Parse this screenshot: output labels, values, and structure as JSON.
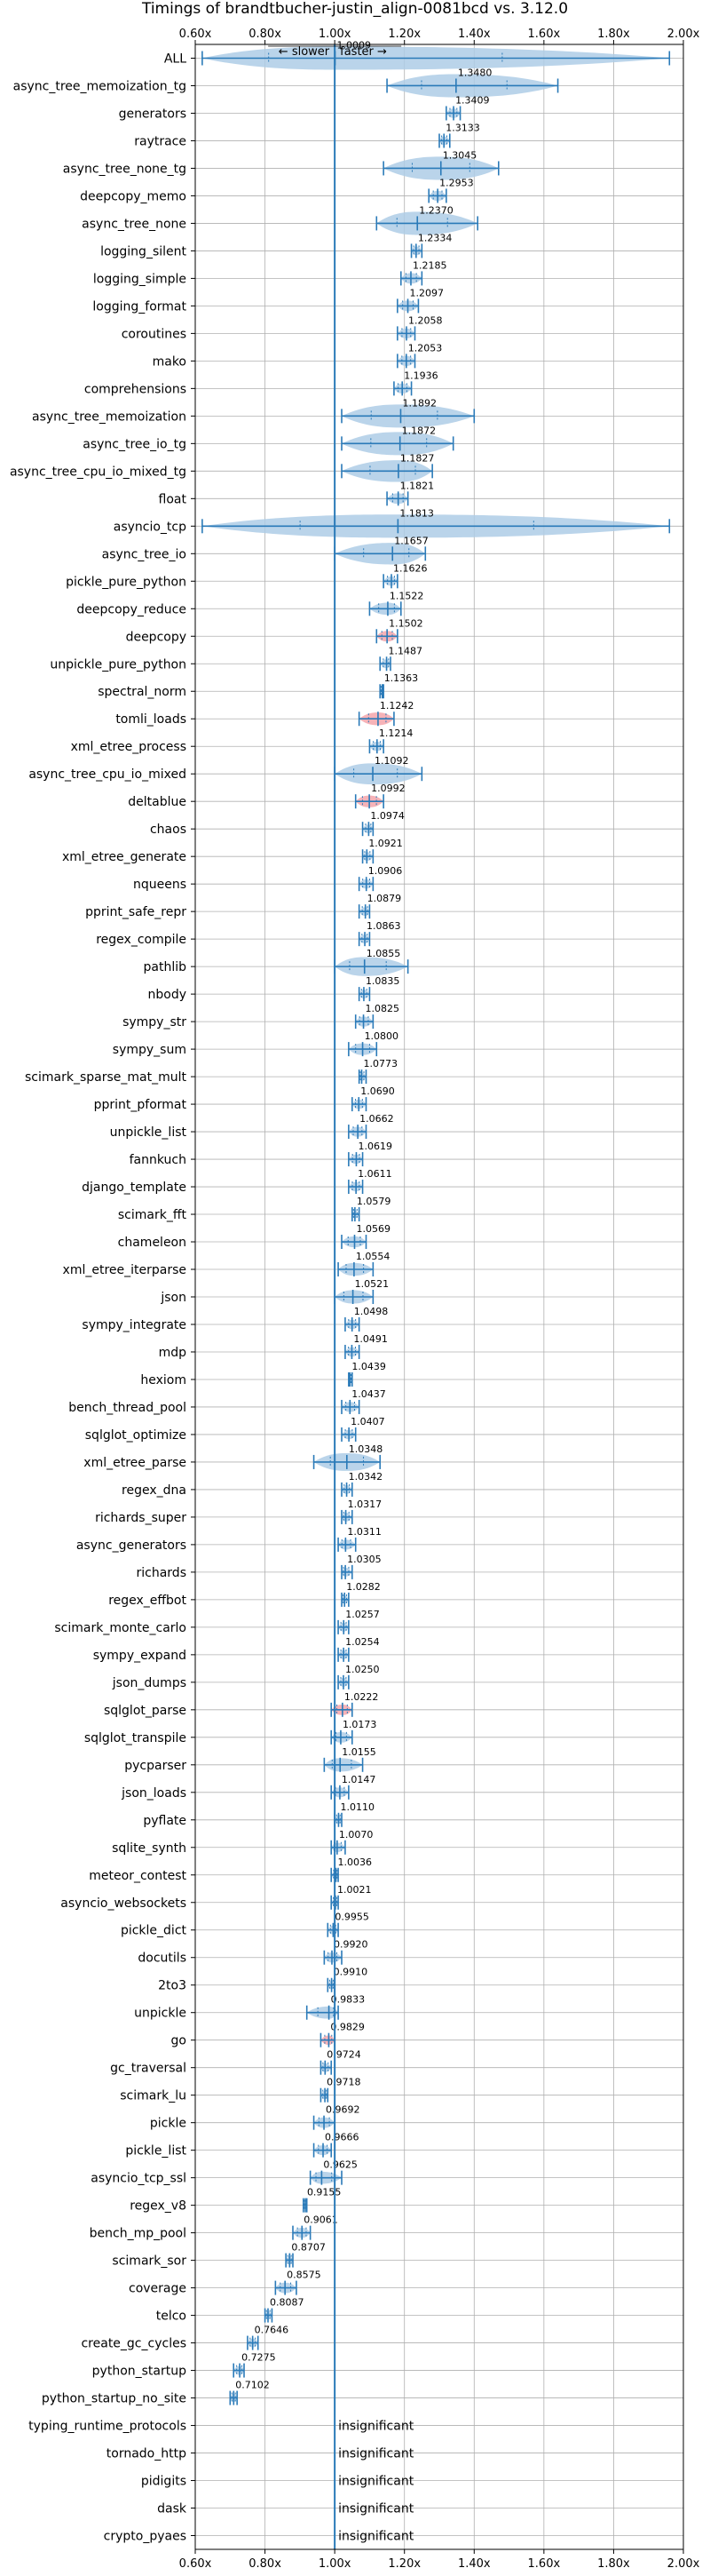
{
  "chart_data": {
    "type": "violin",
    "title": "Timings of brandtbucher-justin_align-0081bcd vs. 3.12.0",
    "xlim": [
      0.6,
      2.0
    ],
    "xticks": [
      "0.60x",
      "0.80x",
      "1.00x",
      "1.20x",
      "1.40x",
      "1.60x",
      "1.80x",
      "2.00x"
    ],
    "xtick_values": [
      0.6,
      0.8,
      1.0,
      1.2,
      1.4,
      1.6,
      1.8,
      2.0
    ],
    "reference_line": 1.0,
    "direction_labels": {
      "slower": "← slower",
      "faster": "faster →"
    },
    "grid": true,
    "colors": {
      "violin": "#aecde6",
      "line": "#2a7ab8",
      "outlier": "#f4a6ab"
    },
    "insignificant_text": "insignificant",
    "benchmarks": [
      {
        "name": "ALL",
        "mean": 1.0009,
        "label": "1.0009",
        "min": 0.62,
        "max": 1.96
      },
      {
        "name": "async_tree_memoization_tg",
        "mean": 1.348,
        "label": "1.3480",
        "min": 1.15,
        "max": 1.64
      },
      {
        "name": "generators",
        "mean": 1.3409,
        "label": "1.3409",
        "min": 1.32,
        "max": 1.36
      },
      {
        "name": "raytrace",
        "mean": 1.3133,
        "label": "1.3133",
        "min": 1.3,
        "max": 1.33
      },
      {
        "name": "async_tree_none_tg",
        "mean": 1.3045,
        "label": "1.3045",
        "min": 1.14,
        "max": 1.47
      },
      {
        "name": "deepcopy_memo",
        "mean": 1.2953,
        "label": "1.2953",
        "min": 1.27,
        "max": 1.32
      },
      {
        "name": "async_tree_none",
        "mean": 1.237,
        "label": "1.2370",
        "min": 1.12,
        "max": 1.41
      },
      {
        "name": "logging_silent",
        "mean": 1.2334,
        "label": "1.2334",
        "min": 1.22,
        "max": 1.25
      },
      {
        "name": "logging_simple",
        "mean": 1.2185,
        "label": "1.2185",
        "min": 1.19,
        "max": 1.25
      },
      {
        "name": "logging_format",
        "mean": 1.2097,
        "label": "1.2097",
        "min": 1.18,
        "max": 1.24
      },
      {
        "name": "coroutines",
        "mean": 1.2058,
        "label": "1.2058",
        "min": 1.18,
        "max": 1.23
      },
      {
        "name": "mako",
        "mean": 1.2053,
        "label": "1.2053",
        "min": 1.18,
        "max": 1.23
      },
      {
        "name": "comprehensions",
        "mean": 1.1936,
        "label": "1.1936",
        "min": 1.17,
        "max": 1.22
      },
      {
        "name": "async_tree_memoization",
        "mean": 1.1892,
        "label": "1.1892",
        "min": 1.02,
        "max": 1.4
      },
      {
        "name": "async_tree_io_tg",
        "mean": 1.1872,
        "label": "1.1872",
        "min": 1.02,
        "max": 1.34
      },
      {
        "name": "async_tree_cpu_io_mixed_tg",
        "mean": 1.1827,
        "label": "1.1827",
        "min": 1.02,
        "max": 1.28
      },
      {
        "name": "float",
        "mean": 1.1821,
        "label": "1.1821",
        "min": 1.15,
        "max": 1.21
      },
      {
        "name": "asyncio_tcp",
        "mean": 1.1813,
        "label": "1.1813",
        "min": 0.62,
        "max": 1.96
      },
      {
        "name": "async_tree_io",
        "mean": 1.1657,
        "label": "1.1657",
        "min": 1.0,
        "max": 1.26
      },
      {
        "name": "pickle_pure_python",
        "mean": 1.1626,
        "label": "1.1626",
        "min": 1.14,
        "max": 1.18
      },
      {
        "name": "deepcopy_reduce",
        "mean": 1.1522,
        "label": "1.1522",
        "min": 1.1,
        "max": 1.19
      },
      {
        "name": "deepcopy",
        "mean": 1.1502,
        "label": "1.1502",
        "min": 1.12,
        "max": 1.18,
        "outlier": true
      },
      {
        "name": "unpickle_pure_python",
        "mean": 1.1487,
        "label": "1.1487",
        "min": 1.13,
        "max": 1.16
      },
      {
        "name": "spectral_norm",
        "mean": 1.1363,
        "label": "1.1363",
        "min": 1.13,
        "max": 1.14
      },
      {
        "name": "tomli_loads",
        "mean": 1.1242,
        "label": "1.1242",
        "min": 1.07,
        "max": 1.17,
        "outlier": true
      },
      {
        "name": "xml_etree_process",
        "mean": 1.1214,
        "label": "1.1214",
        "min": 1.1,
        "max": 1.14
      },
      {
        "name": "async_tree_cpu_io_mixed",
        "mean": 1.1092,
        "label": "1.1092",
        "min": 1.0,
        "max": 1.25
      },
      {
        "name": "deltablue",
        "mean": 1.0992,
        "label": "1.0992",
        "min": 1.06,
        "max": 1.14,
        "outlier": true
      },
      {
        "name": "chaos",
        "mean": 1.0974,
        "label": "1.0974",
        "min": 1.08,
        "max": 1.11
      },
      {
        "name": "xml_etree_generate",
        "mean": 1.0921,
        "label": "1.0921",
        "min": 1.08,
        "max": 1.11
      },
      {
        "name": "nqueens",
        "mean": 1.0906,
        "label": "1.0906",
        "min": 1.07,
        "max": 1.11
      },
      {
        "name": "pprint_safe_repr",
        "mean": 1.0879,
        "label": "1.0879",
        "min": 1.07,
        "max": 1.1
      },
      {
        "name": "regex_compile",
        "mean": 1.0863,
        "label": "1.0863",
        "min": 1.07,
        "max": 1.1
      },
      {
        "name": "pathlib",
        "mean": 1.0855,
        "label": "1.0855",
        "min": 1.0,
        "max": 1.21
      },
      {
        "name": "nbody",
        "mean": 1.0835,
        "label": "1.0835",
        "min": 1.07,
        "max": 1.1
      },
      {
        "name": "sympy_str",
        "mean": 1.0825,
        "label": "1.0825",
        "min": 1.06,
        "max": 1.11
      },
      {
        "name": "sympy_sum",
        "mean": 1.08,
        "label": "1.0800",
        "min": 1.04,
        "max": 1.12
      },
      {
        "name": "scimark_sparse_mat_mult",
        "mean": 1.0773,
        "label": "1.0773",
        "min": 1.07,
        "max": 1.09
      },
      {
        "name": "pprint_pformat",
        "mean": 1.069,
        "label": "1.0690",
        "min": 1.05,
        "max": 1.09
      },
      {
        "name": "unpickle_list",
        "mean": 1.0662,
        "label": "1.0662",
        "min": 1.04,
        "max": 1.09
      },
      {
        "name": "fannkuch",
        "mean": 1.0619,
        "label": "1.0619",
        "min": 1.04,
        "max": 1.08
      },
      {
        "name": "django_template",
        "mean": 1.0611,
        "label": "1.0611",
        "min": 1.04,
        "max": 1.08
      },
      {
        "name": "scimark_fft",
        "mean": 1.0579,
        "label": "1.0579",
        "min": 1.05,
        "max": 1.07
      },
      {
        "name": "chameleon",
        "mean": 1.0569,
        "label": "1.0569",
        "min": 1.02,
        "max": 1.09
      },
      {
        "name": "xml_etree_iterparse",
        "mean": 1.0554,
        "label": "1.0554",
        "min": 1.01,
        "max": 1.11
      },
      {
        "name": "json",
        "mean": 1.0521,
        "label": "1.0521",
        "min": 1.0,
        "max": 1.11
      },
      {
        "name": "sympy_integrate",
        "mean": 1.0498,
        "label": "1.0498",
        "min": 1.03,
        "max": 1.07
      },
      {
        "name": "mdp",
        "mean": 1.0491,
        "label": "1.0491",
        "min": 1.03,
        "max": 1.07
      },
      {
        "name": "hexiom",
        "mean": 1.0439,
        "label": "1.0439",
        "min": 1.04,
        "max": 1.05
      },
      {
        "name": "bench_thread_pool",
        "mean": 1.0437,
        "label": "1.0437",
        "min": 1.02,
        "max": 1.07
      },
      {
        "name": "sqlglot_optimize",
        "mean": 1.0407,
        "label": "1.0407",
        "min": 1.02,
        "max": 1.06
      },
      {
        "name": "xml_etree_parse",
        "mean": 1.0348,
        "label": "1.0348",
        "min": 0.94,
        "max": 1.13
      },
      {
        "name": "regex_dna",
        "mean": 1.0342,
        "label": "1.0342",
        "min": 1.02,
        "max": 1.05
      },
      {
        "name": "richards_super",
        "mean": 1.0317,
        "label": "1.0317",
        "min": 1.02,
        "max": 1.05
      },
      {
        "name": "async_generators",
        "mean": 1.0311,
        "label": "1.0311",
        "min": 1.01,
        "max": 1.06
      },
      {
        "name": "richards",
        "mean": 1.0305,
        "label": "1.0305",
        "min": 1.02,
        "max": 1.05
      },
      {
        "name": "regex_effbot",
        "mean": 1.0282,
        "label": "1.0282",
        "min": 1.02,
        "max": 1.04
      },
      {
        "name": "scimark_monte_carlo",
        "mean": 1.0257,
        "label": "1.0257",
        "min": 1.01,
        "max": 1.04
      },
      {
        "name": "sympy_expand",
        "mean": 1.0254,
        "label": "1.0254",
        "min": 1.01,
        "max": 1.04
      },
      {
        "name": "json_dumps",
        "mean": 1.025,
        "label": "1.0250",
        "min": 1.01,
        "max": 1.04
      },
      {
        "name": "sqlglot_parse",
        "mean": 1.0222,
        "label": "1.0222",
        "min": 0.99,
        "max": 1.05,
        "outlier": true
      },
      {
        "name": "sqlglot_transpile",
        "mean": 1.0173,
        "label": "1.0173",
        "min": 0.99,
        "max": 1.05
      },
      {
        "name": "pycparser",
        "mean": 1.0155,
        "label": "1.0155",
        "min": 0.97,
        "max": 1.08
      },
      {
        "name": "json_loads",
        "mean": 1.0147,
        "label": "1.0147",
        "min": 0.99,
        "max": 1.04
      },
      {
        "name": "pyflate",
        "mean": 1.011,
        "label": "1.0110",
        "min": 1.0,
        "max": 1.02
      },
      {
        "name": "sqlite_synth",
        "mean": 1.007,
        "label": "1.0070",
        "min": 0.99,
        "max": 1.03
      },
      {
        "name": "meteor_contest",
        "mean": 1.0036,
        "label": "1.0036",
        "min": 0.99,
        "max": 1.01
      },
      {
        "name": "asyncio_websockets",
        "mean": 1.0021,
        "label": "1.0021",
        "min": 0.99,
        "max": 1.01
      },
      {
        "name": "pickle_dict",
        "mean": 0.9955,
        "label": "0.9955",
        "min": 0.98,
        "max": 1.01
      },
      {
        "name": "docutils",
        "mean": 0.992,
        "label": "0.9920",
        "min": 0.97,
        "max": 1.02
      },
      {
        "name": "2to3",
        "mean": 0.991,
        "label": "0.9910",
        "min": 0.98,
        "max": 1.0
      },
      {
        "name": "unpickle",
        "mean": 0.9833,
        "label": "0.9833",
        "min": 0.92,
        "max": 1.01
      },
      {
        "name": "go",
        "mean": 0.9829,
        "label": "0.9829",
        "min": 0.96,
        "max": 1.0,
        "outlier": true
      },
      {
        "name": "gc_traversal",
        "mean": 0.9724,
        "label": "0.9724",
        "min": 0.96,
        "max": 0.99
      },
      {
        "name": "scimark_lu",
        "mean": 0.9718,
        "label": "0.9718",
        "min": 0.96,
        "max": 0.98
      },
      {
        "name": "pickle",
        "mean": 0.9692,
        "label": "0.9692",
        "min": 0.94,
        "max": 1.0
      },
      {
        "name": "pickle_list",
        "mean": 0.9666,
        "label": "0.9666",
        "min": 0.94,
        "max": 0.99
      },
      {
        "name": "asyncio_tcp_ssl",
        "mean": 0.9625,
        "label": "0.9625",
        "min": 0.93,
        "max": 1.02
      },
      {
        "name": "regex_v8",
        "mean": 0.9155,
        "label": "0.9155",
        "min": 0.91,
        "max": 0.92
      },
      {
        "name": "bench_mp_pool",
        "mean": 0.9061,
        "label": "0.9061",
        "min": 0.88,
        "max": 0.93
      },
      {
        "name": "scimark_sor",
        "mean": 0.8707,
        "label": "0.8707",
        "min": 0.86,
        "max": 0.88
      },
      {
        "name": "coverage",
        "mean": 0.8575,
        "label": "0.8575",
        "min": 0.83,
        "max": 0.89
      },
      {
        "name": "telco",
        "mean": 0.8087,
        "label": "0.8087",
        "min": 0.8,
        "max": 0.82
      },
      {
        "name": "create_gc_cycles",
        "mean": 0.7646,
        "label": "0.7646",
        "min": 0.75,
        "max": 0.78
      },
      {
        "name": "python_startup",
        "mean": 0.7275,
        "label": "0.7275",
        "min": 0.71,
        "max": 0.74
      },
      {
        "name": "python_startup_no_site",
        "mean": 0.7102,
        "label": "0.7102",
        "min": 0.7,
        "max": 0.72
      },
      {
        "name": "typing_runtime_protocols",
        "insignificant": true
      },
      {
        "name": "tornado_http",
        "insignificant": true
      },
      {
        "name": "pidigits",
        "insignificant": true
      },
      {
        "name": "dask",
        "insignificant": true
      },
      {
        "name": "crypto_pyaes",
        "insignificant": true
      }
    ]
  }
}
